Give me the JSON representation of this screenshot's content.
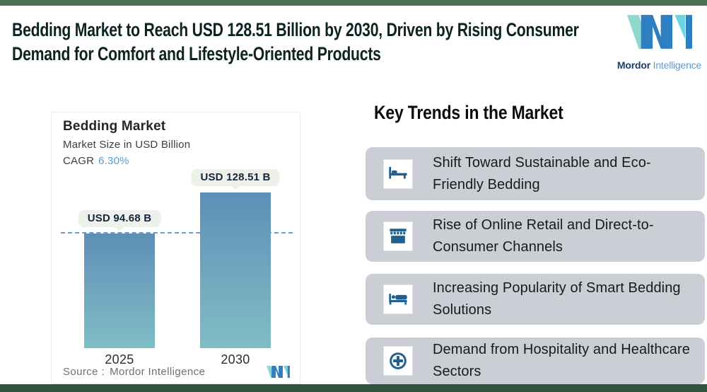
{
  "page": {
    "background": "#ffffff",
    "top_strip_color": "#4a7152",
    "bottom_strip_color": "#2e5440"
  },
  "header": {
    "title": "Bedding Market to Reach USD 128.51 Billion by 2030, Driven by Rising Consumer Demand for Comfort and Lifestyle-Oriented Products",
    "brand": {
      "name_bold": "Mordor",
      "name_light": "Intelligence"
    }
  },
  "chart_data": {
    "type": "bar",
    "title": "Bedding Market",
    "subtitle": "Market Size in USD Billion",
    "cagr_label": "CAGR",
    "cagr_value": "6.30%",
    "categories": [
      "2025",
      "2030"
    ],
    "values": [
      94.68,
      128.51
    ],
    "bar_labels": [
      "USD 94.68 B",
      "USD 128.51 B"
    ],
    "unit": "USD Billion",
    "ylim": [
      0,
      140
    ],
    "grid": false,
    "legend": "none",
    "reference_line": {
      "style": "dashed",
      "at_value": 94.68,
      "color": "#6f9cc4"
    },
    "bar_gradient": [
      "#5d8eb6",
      "#7fbdc6"
    ],
    "source_label": "Source :",
    "source_value": "Mordor Intelligence"
  },
  "trends": {
    "heading": "Key Trends in the Market",
    "card_color": "#cbced5",
    "icon_color": "#1f608e",
    "items": [
      {
        "icon": "bed-icon",
        "text": "Shift Toward Sustainable and Eco-Friendly Bedding"
      },
      {
        "icon": "storefront-icon",
        "text": "Rise of Online Retail and Direct-to-Consumer Channels"
      },
      {
        "icon": "smart-bed-icon",
        "text": "Increasing Popularity of Smart Bedding Solutions"
      },
      {
        "icon": "medical-plus-icon",
        "text": "Demand from Hospitality and Healthcare Sectors"
      }
    ]
  },
  "colors": {
    "title_text": "#0d2321",
    "accent_blue": "#5b9bd5",
    "logo_navy": "#1c3e68",
    "logo_blue": "#2e7fc2",
    "logo_teal": "#7fd8d4",
    "tooltip_bg": "#eef0ea"
  }
}
